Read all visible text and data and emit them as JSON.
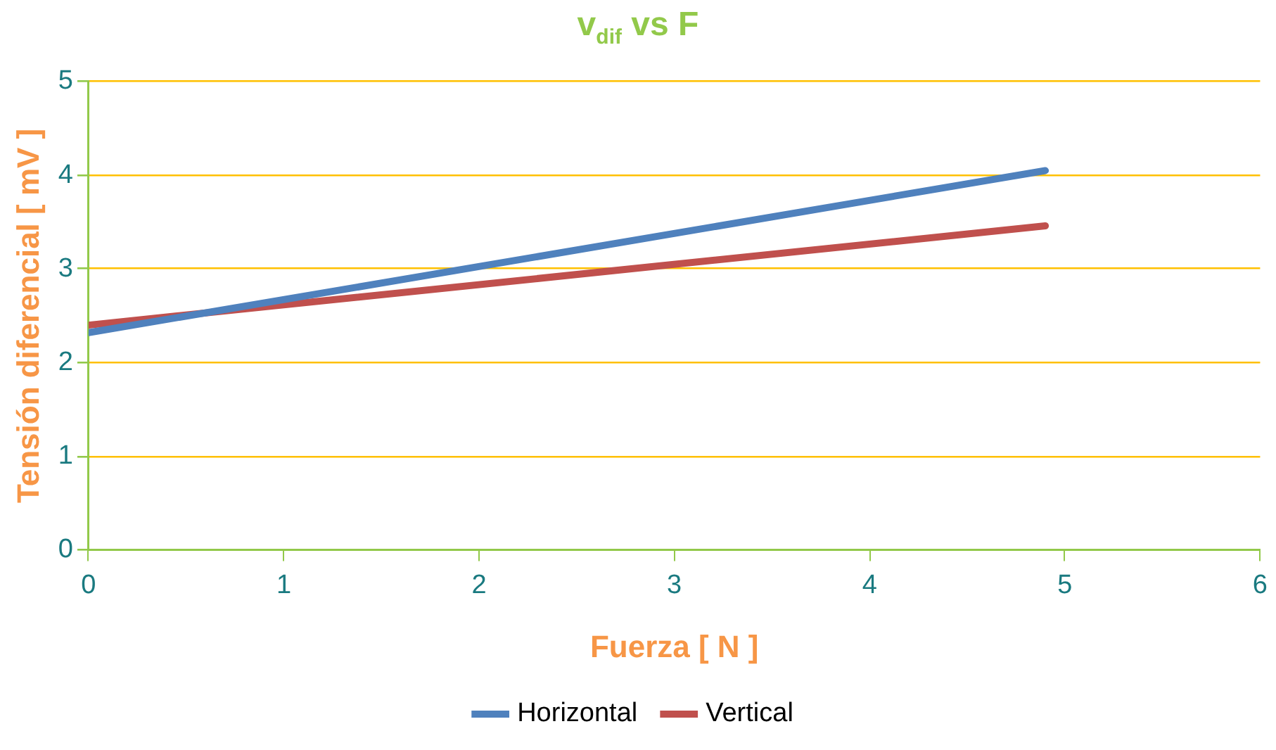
{
  "chart_data": {
    "type": "line",
    "title": "v$_{dif}$ vs F",
    "xlabel": "Fuerza [ N ]",
    "ylabel": "Tensión diferencial [ mV ]",
    "series": [
      {
        "name": "Horizontal",
        "color": "#4f81bd",
        "values": [
          2.32,
          4.05
        ]
      },
      {
        "name": "Vertical",
        "color": "#c0504d",
        "values": [
          2.4,
          3.46
        ]
      }
    ],
    "x": [
      0,
      4.9
    ],
    "xlim": [
      0,
      6
    ],
    "xticks": [
      0,
      1,
      2,
      3,
      4,
      5,
      6
    ],
    "ylim": [
      0,
      5
    ],
    "yticks": [
      0,
      1,
      2,
      3,
      4,
      5
    ],
    "grid": "y",
    "legend": "bottom",
    "marker": "none",
    "line_style": "solid"
  }
}
